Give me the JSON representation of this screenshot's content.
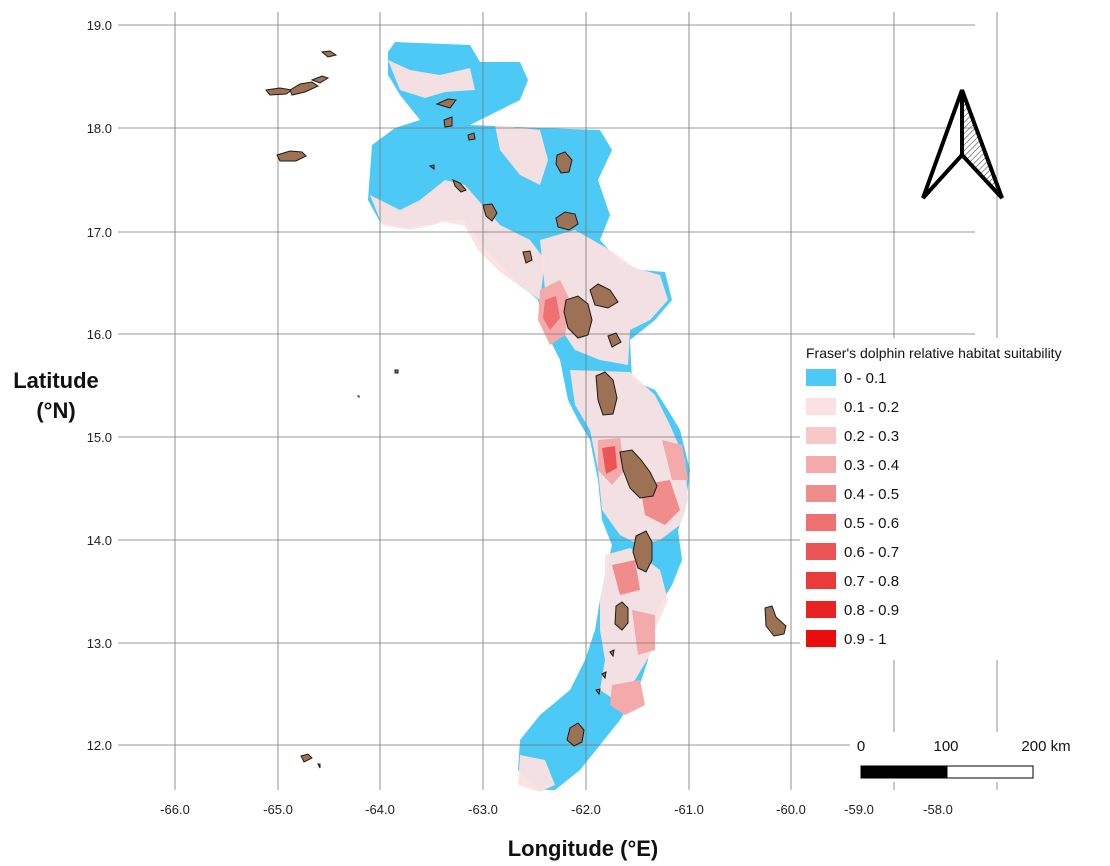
{
  "map": {
    "x_axis_title": "Longitude (°E)",
    "y_axis_title_line1": "Latitude",
    "y_axis_title_line2": "(°N)",
    "x_ticks": [
      "-66.0",
      "-65.0",
      "-64.0",
      "-63.0",
      "-62.0",
      "-61.0",
      "-60.0",
      "-59.0",
      "-58.0"
    ],
    "y_ticks": [
      "19.0",
      "18.0",
      "17.0",
      "16.0",
      "15.0",
      "14.0",
      "13.0",
      "12.0"
    ],
    "colors": {
      "ocean_low": "#4dc9f6",
      "land": "#9c7154",
      "grid": "#777777"
    }
  },
  "legend": {
    "title": "Fraser's dolphin relative habitat suitability",
    "classes": [
      {
        "label": "0 - 0.1",
        "color": "#4dc9f6"
      },
      {
        "label": "0.1 - 0.2",
        "color": "#fbe1e1"
      },
      {
        "label": "0.2 - 0.3",
        "color": "#f8c8c8"
      },
      {
        "label": "0.3 - 0.4",
        "color": "#f4aaaa"
      },
      {
        "label": "0.4 - 0.5",
        "color": "#f18c8c"
      },
      {
        "label": "0.5 - 0.6",
        "color": "#ee7070"
      },
      {
        "label": "0.6 - 0.7",
        "color": "#ec5555"
      },
      {
        "label": "0.7 - 0.8",
        "color": "#ea3b3b"
      },
      {
        "label": "0.8 - 0.9",
        "color": "#e92222"
      },
      {
        "label": "0.9 - 1",
        "color": "#e80e0e"
      }
    ]
  },
  "scale_bar": {
    "label_0": "0",
    "label_100": "100",
    "label_200": "200 km"
  },
  "north_arrow": {
    "icon": "north-arrow-icon"
  }
}
